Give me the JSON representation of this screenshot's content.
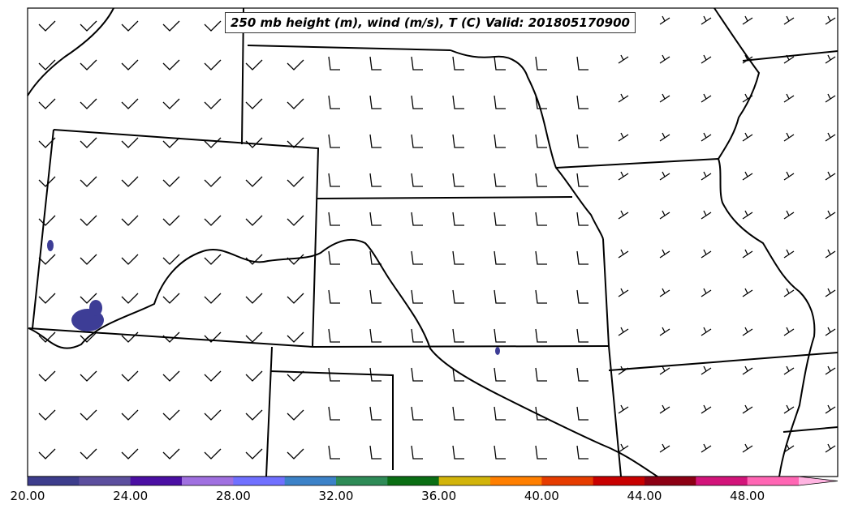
{
  "title": "250 mb height (m), wind (m/s), T (C) Valid: 201805170900",
  "colorbar": {
    "colors": [
      "#3d3d8c",
      "#5c4f9e",
      "#4b0fa3",
      "#a070e0",
      "#7070ff",
      "#3c82c8",
      "#2e8b57",
      "#0a6e14",
      "#d2b40a",
      "#ff7f00",
      "#e63c00",
      "#c80000",
      "#8c0014",
      "#d2147a",
      "#ff66b4",
      "#ffb4e1"
    ],
    "ticks": [
      "20.00",
      "24.00",
      "28.00",
      "32.00",
      "36.00",
      "40.00",
      "44.00",
      "48.00"
    ]
  },
  "precip_color": "#3d3d96"
}
